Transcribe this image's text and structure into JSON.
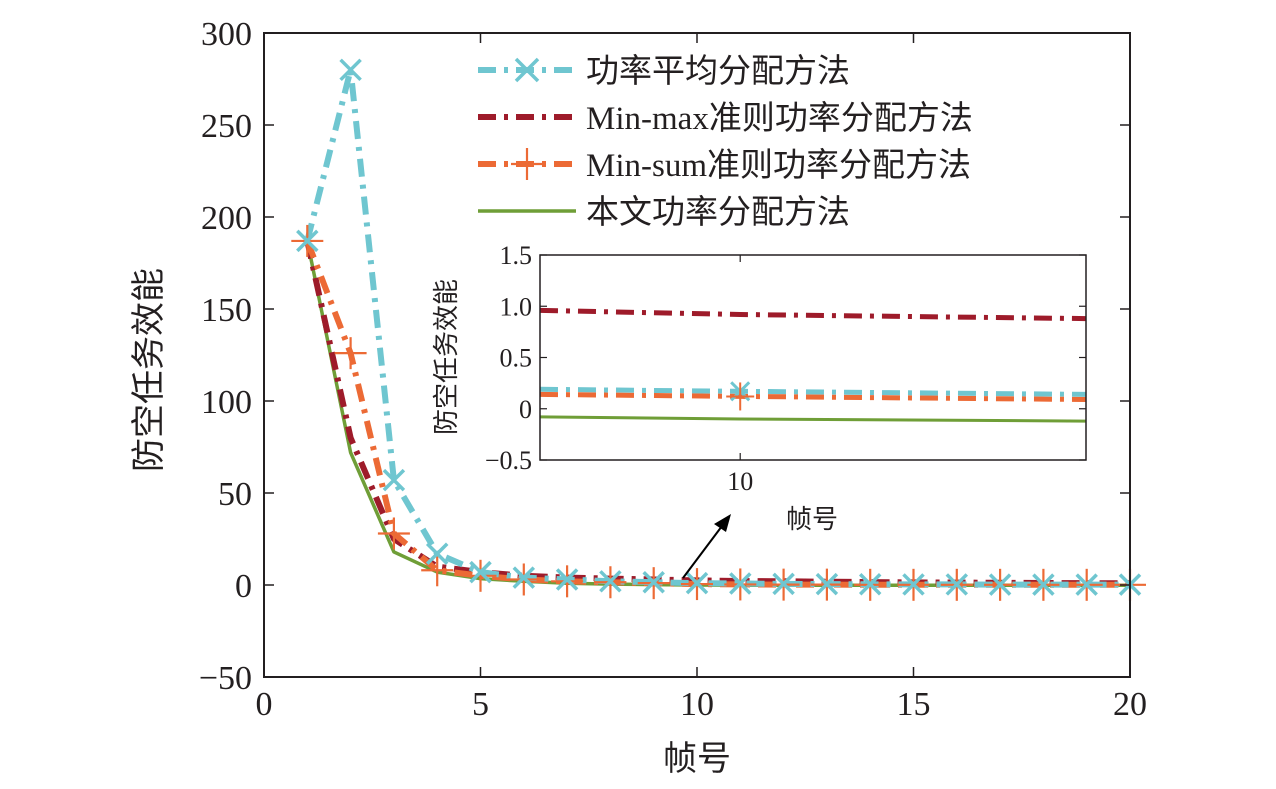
{
  "colors": {
    "equal": "#6fc6d0",
    "minmax": "#9e1b2a",
    "minsum": "#ec6a35",
    "proposed": "#6f9e37",
    "axis": "#231f20",
    "arrow": "#000000"
  },
  "chart_data": [
    {
      "type": "line",
      "title": "",
      "xlabel": "帧号",
      "ylabel": "防空任务效能",
      "xlim": [
        0,
        20
      ],
      "ylim": [
        -50,
        300
      ],
      "xticks": [
        0,
        5,
        10,
        15,
        20
      ],
      "yticks": [
        -50,
        0,
        50,
        100,
        150,
        200,
        250,
        300
      ],
      "x": [
        1,
        2,
        3,
        4,
        5,
        6,
        7,
        8,
        9,
        10,
        11,
        12,
        13,
        14,
        15,
        16,
        17,
        18,
        19,
        20
      ],
      "legend_position": "top-right",
      "grid": false,
      "series": [
        {
          "key": "equal",
          "name": "功率平均分配方法",
          "style": "dash-dot",
          "marker": "x",
          "values": [
            187,
            280,
            57,
            17,
            7,
            4,
            3,
            2,
            1.5,
            1,
            0.8,
            0.6,
            0.5,
            0.4,
            0.3,
            0.3,
            0.2,
            0.2,
            0.2,
            0.2
          ]
        },
        {
          "key": "minmax",
          "name": "Min-max准则功率分配方法",
          "style": "dash-dot",
          "marker": "none",
          "values": [
            187,
            80,
            25,
            10,
            7,
            5,
            4,
            3.5,
            3,
            2.5,
            2.2,
            2,
            1.8,
            1.6,
            1.4,
            1.3,
            1.2,
            1.1,
            1,
            1
          ]
        },
        {
          "key": "minsum",
          "name": "Min-sum准则功率分配方法",
          "style": "dash-dot",
          "marker": "+",
          "values": [
            187,
            126,
            28,
            8,
            5,
            3,
            2,
            1.5,
            1,
            0.5,
            0.3,
            0.2,
            0.2,
            0.1,
            0.1,
            0.1,
            0.1,
            0.1,
            0.1,
            0.1
          ]
        },
        {
          "key": "proposed",
          "name": "本文功率分配方法",
          "style": "solid",
          "marker": "none",
          "values": [
            187,
            72,
            18,
            7,
            3.5,
            2,
            1,
            0.5,
            0.2,
            0,
            -0.1,
            -0.1,
            -0.1,
            -0.1,
            -0.1,
            -0.1,
            -0.1,
            -0.1,
            -0.1,
            -0.1
          ]
        }
      ]
    },
    {
      "type": "line",
      "title": "",
      "xlabel": "帧号",
      "ylabel": "防空任务效能",
      "xlim": [
        7.8,
        13.8
      ],
      "ylim": [
        -0.5,
        1.5
      ],
      "xticks": [
        10
      ],
      "yticks": [
        -0.5,
        0,
        0.5,
        1.0,
        1.5
      ],
      "ytick_labels": [
        "−0.5",
        "0",
        "0.5",
        "1.0",
        "1.5"
      ],
      "x": [
        7.8,
        10,
        13.8
      ],
      "grid": false,
      "series": [
        {
          "key": "minmax",
          "values": [
            0.96,
            0.92,
            0.88
          ]
        },
        {
          "key": "equal",
          "values": [
            0.19,
            0.17,
            0.14
          ]
        },
        {
          "key": "minsum",
          "values": [
            0.14,
            0.12,
            0.09
          ]
        },
        {
          "key": "proposed",
          "values": [
            -0.08,
            -0.1,
            -0.12
          ]
        }
      ],
      "markers": [
        {
          "key": "equal",
          "x": 10,
          "y": 0.17,
          "marker": "x"
        },
        {
          "key": "minsum",
          "x": 10,
          "y": 0.12,
          "marker": "+"
        }
      ]
    }
  ]
}
